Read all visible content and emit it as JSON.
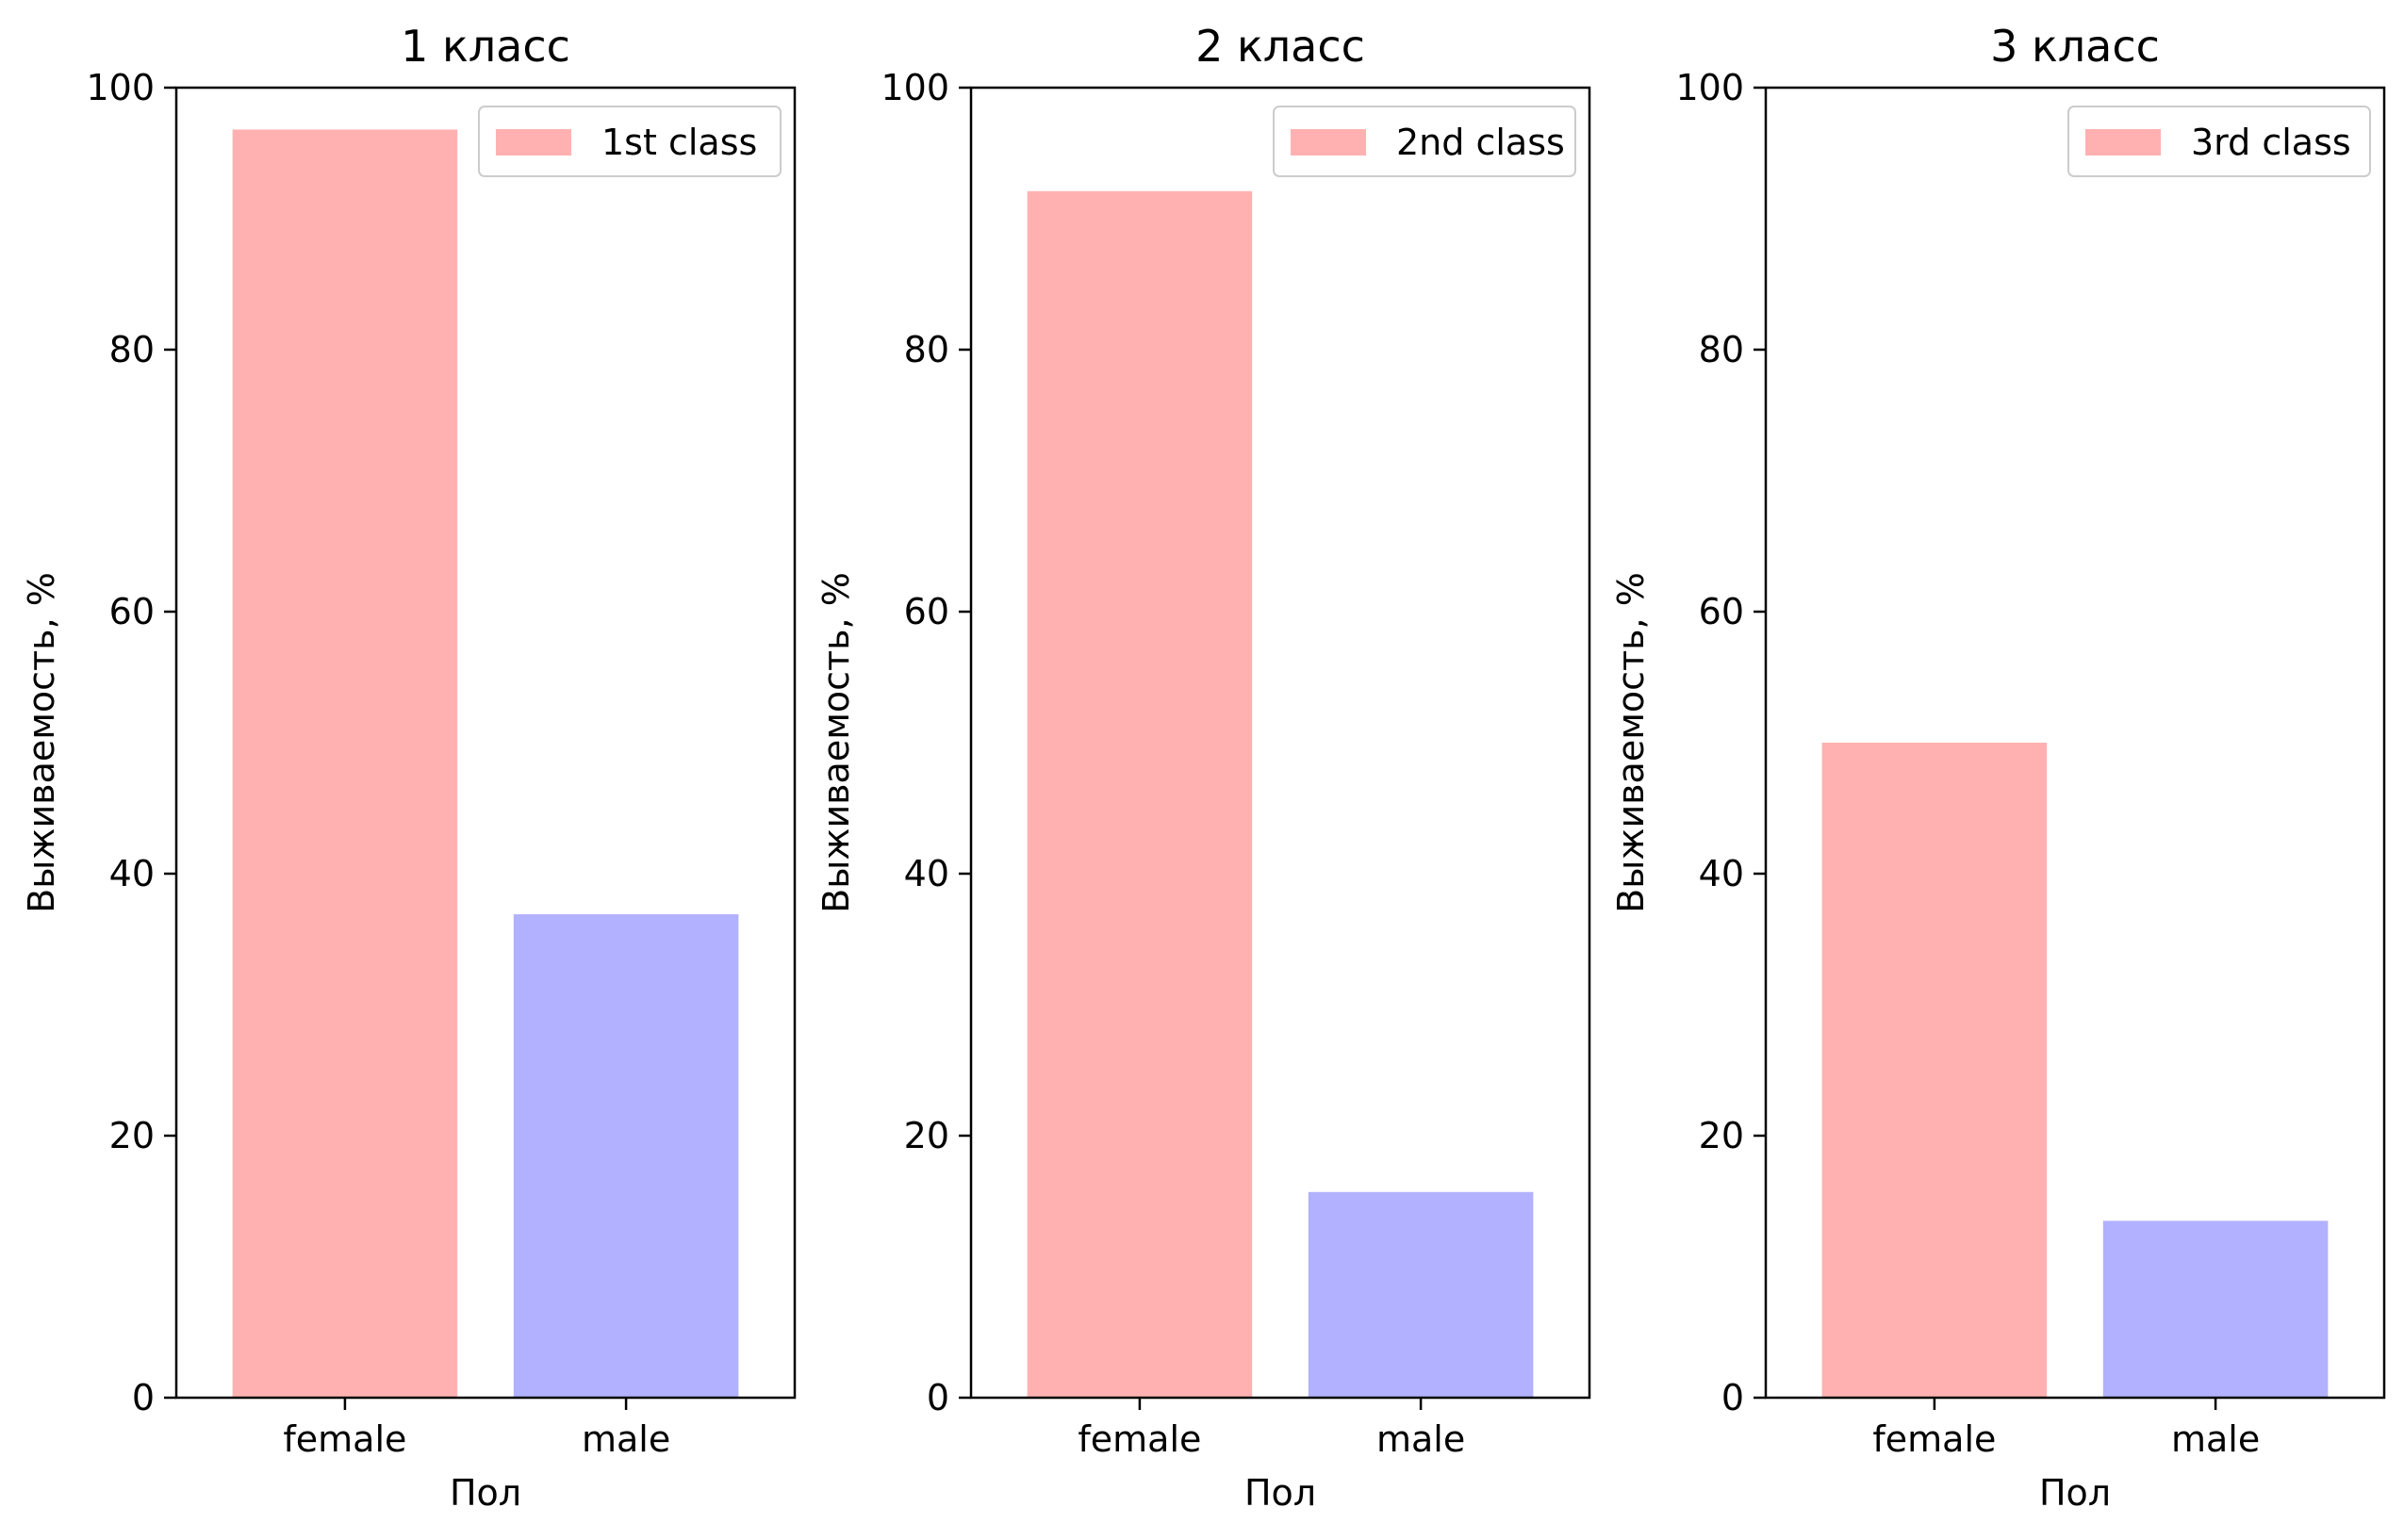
{
  "chart_data": [
    {
      "type": "bar",
      "title": "1 класс",
      "xlabel": "Пол",
      "ylabel": "Выживаемость, %",
      "categories": [
        "female",
        "male"
      ],
      "values": [
        96.8,
        36.9
      ],
      "bar_colors": [
        "#ffb1b1",
        "#b1b1ff"
      ],
      "ylim": [
        0,
        100
      ],
      "yticks": [
        "0",
        "20",
        "40",
        "60",
        "80",
        "100"
      ],
      "legend": {
        "label": "1st class",
        "color": "#ffb1b1",
        "placement": "top-right"
      },
      "grid": false
    },
    {
      "type": "bar",
      "title": "2 класс",
      "xlabel": "Пол",
      "ylabel": "Выживаемость, %",
      "categories": [
        "female",
        "male"
      ],
      "values": [
        92.1,
        15.7
      ],
      "bar_colors": [
        "#ffb1b1",
        "#b1b1ff"
      ],
      "ylim": [
        0,
        100
      ],
      "yticks": [
        "0",
        "20",
        "40",
        "60",
        "80",
        "100"
      ],
      "legend": {
        "label": "2nd class",
        "color": "#ffb1b1",
        "placement": "top-right"
      },
      "grid": false
    },
    {
      "type": "bar",
      "title": "3 класс",
      "xlabel": "Пол",
      "ylabel": "Выживаемость, %",
      "categories": [
        "female",
        "male"
      ],
      "values": [
        50.0,
        13.5
      ],
      "bar_colors": [
        "#ffb1b1",
        "#b1b1ff"
      ],
      "ylim": [
        0,
        100
      ],
      "yticks": [
        "0",
        "20",
        "40",
        "60",
        "80",
        "100"
      ],
      "legend": {
        "label": "3rd class",
        "color": "#ffb1b1",
        "placement": "top-right"
      },
      "grid": false
    }
  ]
}
